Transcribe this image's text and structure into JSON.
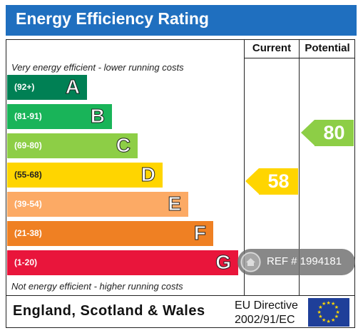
{
  "title": "Energy Efficiency Rating",
  "columns": {
    "current": "Current",
    "potential": "Potential"
  },
  "top_note": "Very energy efficient - lower running costs",
  "bottom_note": "Not energy efficient - higher running costs",
  "bands": [
    {
      "range": "(92+)",
      "letter": "A",
      "color": "#008054"
    },
    {
      "range": "(81-91)",
      "letter": "B",
      "color": "#19b459"
    },
    {
      "range": "(69-80)",
      "letter": "C",
      "color": "#8dce46"
    },
    {
      "range": "(55-68)",
      "letter": "D",
      "color": "#ffd500"
    },
    {
      "range": "(39-54)",
      "letter": "E",
      "color": "#fcaa65"
    },
    {
      "range": "(21-38)",
      "letter": "F",
      "color": "#ef8023"
    },
    {
      "range": "(1-20)",
      "letter": "G",
      "color": "#e9153b"
    }
  ],
  "current": {
    "value": "58",
    "band": "D",
    "color": "#ffd500"
  },
  "potential": {
    "value": "80",
    "band": "C",
    "color": "#8dce46"
  },
  "footer": {
    "region": "England, Scotland & Wales",
    "directive_line1": "EU Directive",
    "directive_line2": "2002/91/EC"
  },
  "watermark": {
    "text": "REF # 1994181"
  },
  "icons": {
    "flag": "eu-flag-icon",
    "watermark": "home-icon"
  }
}
